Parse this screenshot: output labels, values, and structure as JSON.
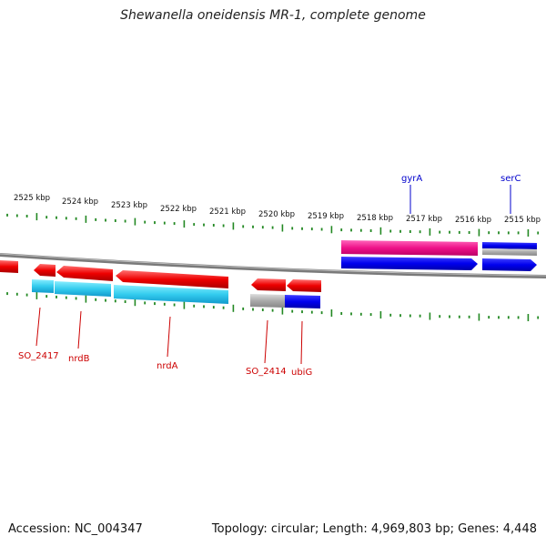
{
  "title": "Shewanella oneidensis MR-1, complete genome",
  "footer": {
    "accession": "Accession: NC_004347",
    "topology": "Topology: circular; Length: 4,969,803 bp; Genes: 4,448"
  },
  "kbp_labels": [
    "2525 kbp",
    "2524 kbp",
    "2523 kbp",
    "2522 kbp",
    "2521 kbp",
    "2520 kbp",
    "2519 kbp",
    "2518 kbp",
    "2517 kbp",
    "2516 kbp",
    "2515 kbp"
  ],
  "gene_labels_above": [
    {
      "name": "gyrA",
      "color": "#0000cc"
    },
    {
      "name": "serC",
      "color": "#0000cc"
    }
  ],
  "gene_labels_below": [
    {
      "name": "SO_2417",
      "color": "#cc0000"
    },
    {
      "name": "nrdB",
      "color": "#cc0000"
    },
    {
      "name": "nrdA",
      "color": "#cc0000"
    },
    {
      "name": "SO_2414",
      "color": "#cc0000"
    },
    {
      "name": "ubiG",
      "color": "#cc0000"
    }
  ],
  "colors": {
    "forward_cds": "#0000ee",
    "reverse_cds": "#ee0000",
    "cog_cyan": "#33ccee",
    "cog_pink": "#ee1188",
    "cog_gray": "#aaaaaa",
    "cog_blue": "#0000dd",
    "backbone": "#777777",
    "ticks": "#228822"
  }
}
